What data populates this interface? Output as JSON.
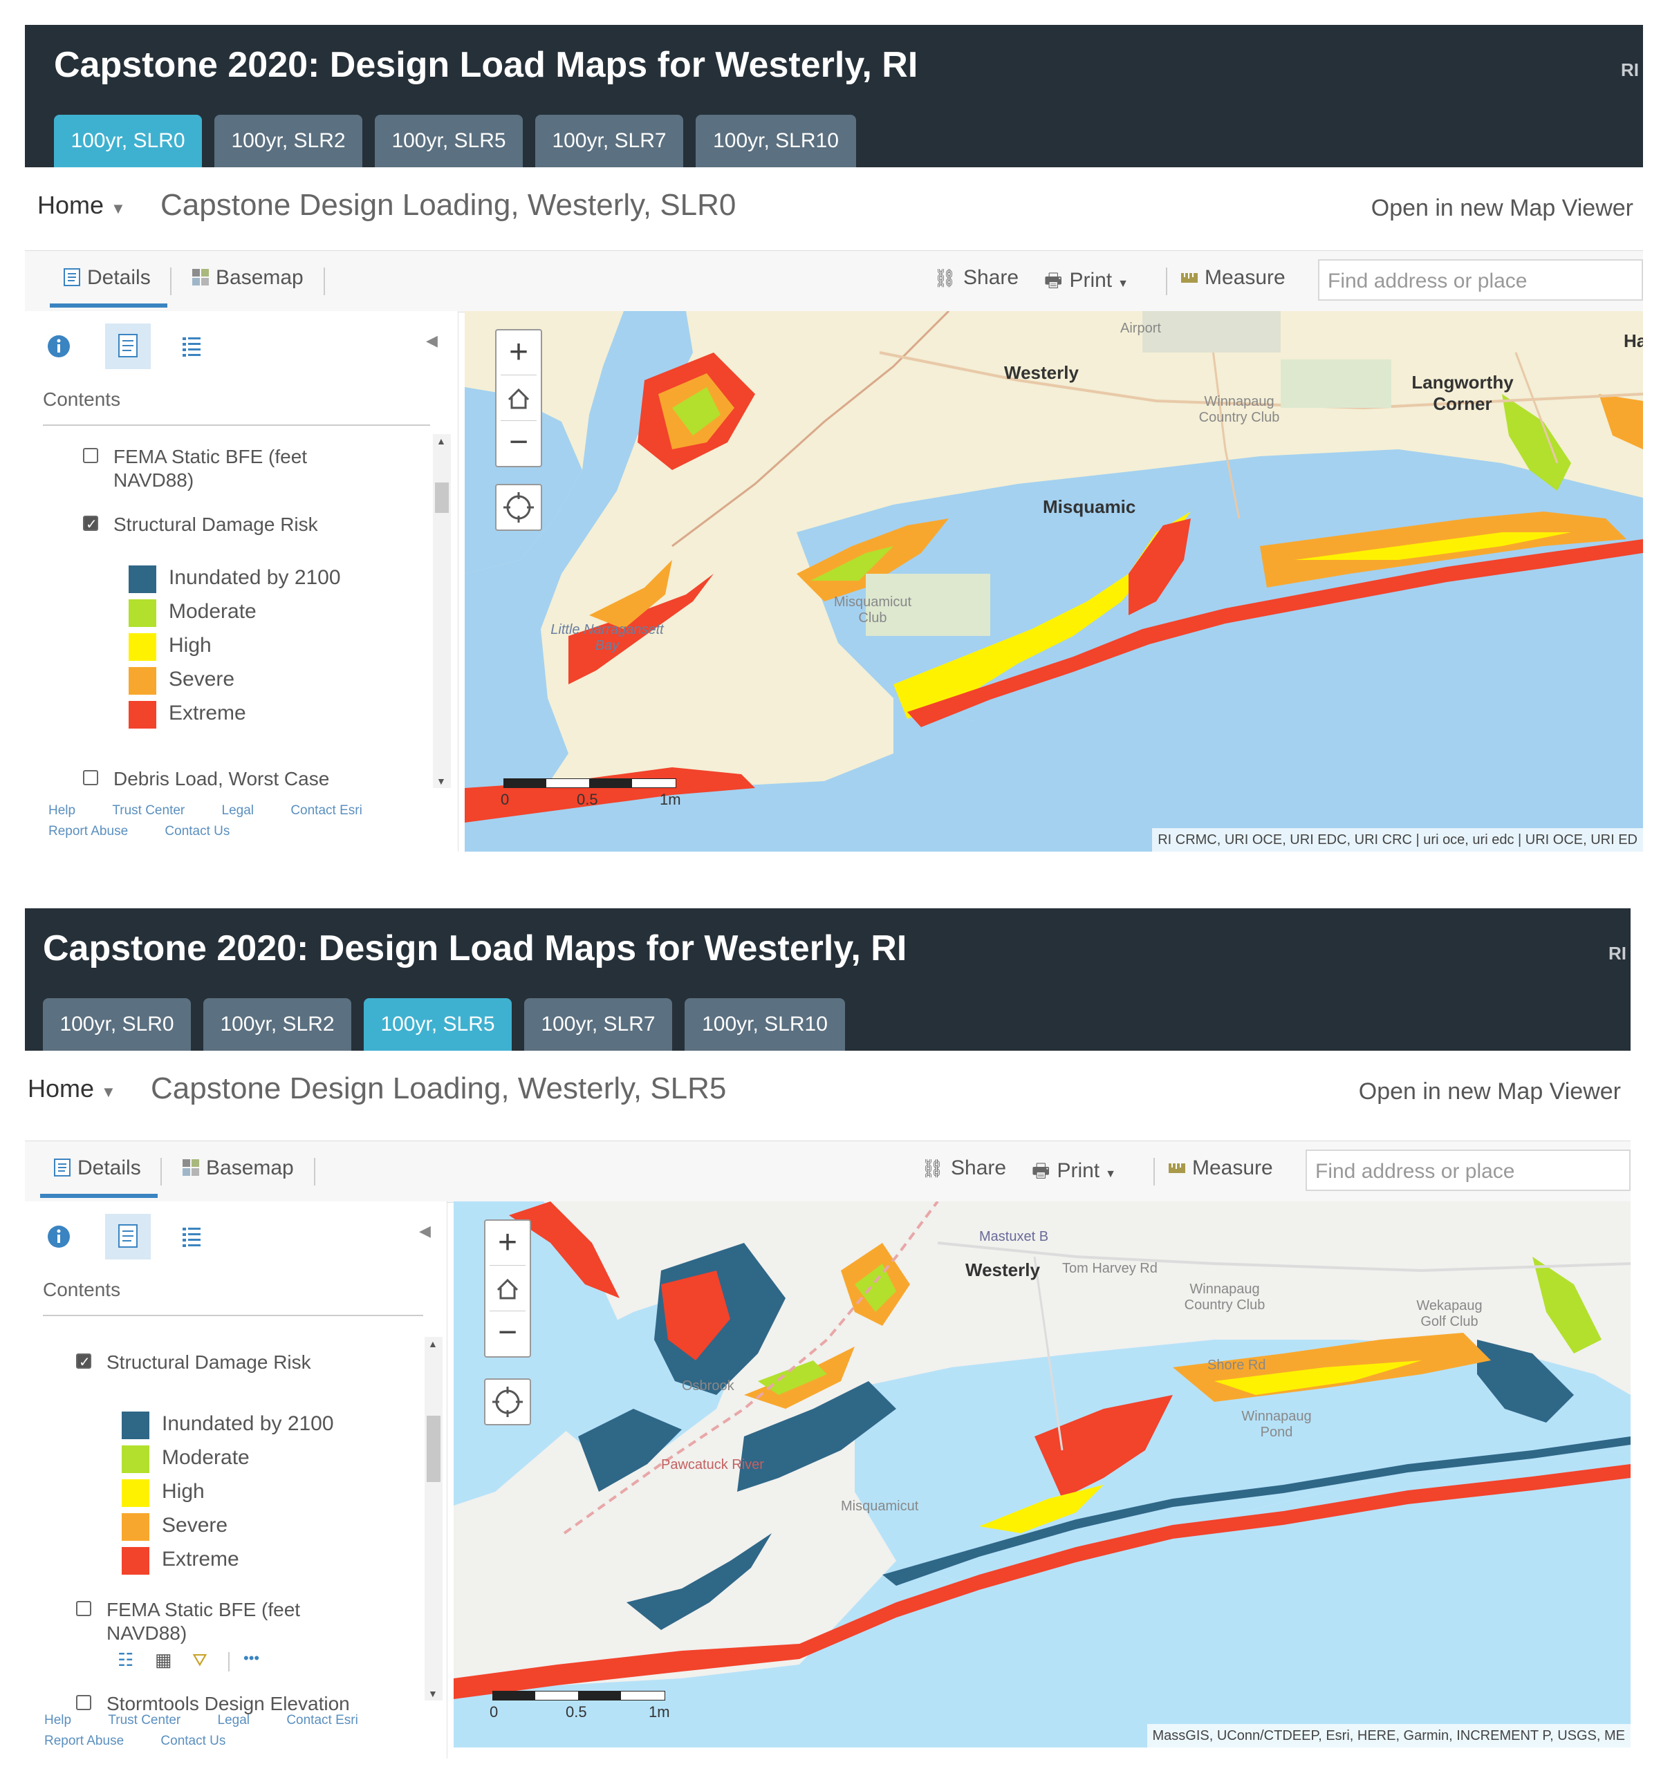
{
  "panels": [
    {
      "header": {
        "title": "Capstone 2020: Design Load Maps for Westerly, RI",
        "badge": "RI",
        "tabs": [
          {
            "label": "100yr, SLR0",
            "active": true
          },
          {
            "label": "100yr, SLR2",
            "active": false
          },
          {
            "label": "100yr, SLR5",
            "active": false
          },
          {
            "label": "100yr, SLR7",
            "active": false
          },
          {
            "label": "100yr, SLR10",
            "active": false
          }
        ]
      },
      "nav": {
        "home_label": "Home",
        "map_title": "Capstone Design Loading, Westerly, SLR0",
        "open_viewer": "Open in new Map Viewer"
      },
      "toolbar": {
        "details": "Details",
        "basemap": "Basemap",
        "share": "Share",
        "print": "Print",
        "measure": "Measure",
        "search_placeholder": "Find address or place"
      },
      "sidebar": {
        "contents_label": "Contents",
        "layers": [
          {
            "name": "FEMA Static BFE (feet NAVD88)",
            "checked": false
          },
          {
            "name": "Structural Damage Risk",
            "checked": true
          },
          {
            "name": "Debris Load, Worst Case",
            "checked": false
          }
        ],
        "legend": [
          {
            "label": "Inundated by 2100",
            "color": "#2f6787"
          },
          {
            "label": "Moderate",
            "color": "#b2e02d"
          },
          {
            "label": "High",
            "color": "#fff200"
          },
          {
            "label": "Severe",
            "color": "#f8a72e"
          },
          {
            "label": "Extreme",
            "color": "#f2432b"
          }
        ],
        "footer_line1": [
          "Help",
          "Trust Center",
          "Legal",
          "Contact Esri"
        ],
        "footer_line2": [
          "Report Abuse",
          "Contact Us"
        ]
      },
      "map": {
        "places": [
          "Westerly",
          "Langworthy Corner",
          "Misquamic",
          "Airport",
          "Winnapaug Country Club",
          "Misquamicut Club",
          "Little Narragansett Bay",
          "Ha"
        ],
        "scale_labels": [
          "0",
          "0.5",
          "1m"
        ],
        "attribution": "RI CRMC, URI OCE, URI EDC, URI CRC | uri oce, uri edc | URI OCE, URI ED"
      }
    },
    {
      "header": {
        "title": "Capstone 2020: Design Load Maps for Westerly, RI",
        "badge": "RI",
        "tabs": [
          {
            "label": "100yr, SLR0",
            "active": false
          },
          {
            "label": "100yr, SLR2",
            "active": false
          },
          {
            "label": "100yr, SLR5",
            "active": true
          },
          {
            "label": "100yr, SLR7",
            "active": false
          },
          {
            "label": "100yr, SLR10",
            "active": false
          }
        ]
      },
      "nav": {
        "home_label": "Home",
        "map_title": "Capstone Design Loading, Westerly, SLR5",
        "open_viewer": "Open in new Map Viewer"
      },
      "toolbar": {
        "details": "Details",
        "basemap": "Basemap",
        "share": "Share",
        "print": "Print",
        "measure": "Measure",
        "search_placeholder": "Find address or place"
      },
      "sidebar": {
        "contents_label": "Contents",
        "layers": [
          {
            "name": "Structural Damage Risk",
            "checked": true
          },
          {
            "name": "FEMA Static BFE (feet NAVD88)",
            "checked": false
          },
          {
            "name": "Stormtools Design Elevation",
            "checked": false
          }
        ],
        "legend": [
          {
            "label": "Inundated by 2100",
            "color": "#2f6787"
          },
          {
            "label": "Moderate",
            "color": "#b2e02d"
          },
          {
            "label": "High",
            "color": "#fff200"
          },
          {
            "label": "Severe",
            "color": "#f8a72e"
          },
          {
            "label": "Extreme",
            "color": "#f2432b"
          }
        ],
        "more": "•••",
        "footer_line1": [
          "Help",
          "Trust Center",
          "Legal",
          "Contact Esri"
        ],
        "footer_line2": [
          "Report Abuse",
          "Contact Us"
        ]
      },
      "map": {
        "places": [
          "Westerly",
          "Tom Harvey Rd",
          "Winnapaug Country Club",
          "Winnapaug Pond",
          "Misquamicut",
          "Shore Rd",
          "Mastuxet B",
          "Pawcatuck River",
          "Osbrook",
          "Wekapaug Golf Club"
        ],
        "scale_labels": [
          "0",
          "0.5",
          "1m"
        ],
        "attribution": "MassGIS, UConn/CTDEEP, Esri, HERE, Garmin, INCREMENT P, USGS, ME"
      }
    }
  ]
}
